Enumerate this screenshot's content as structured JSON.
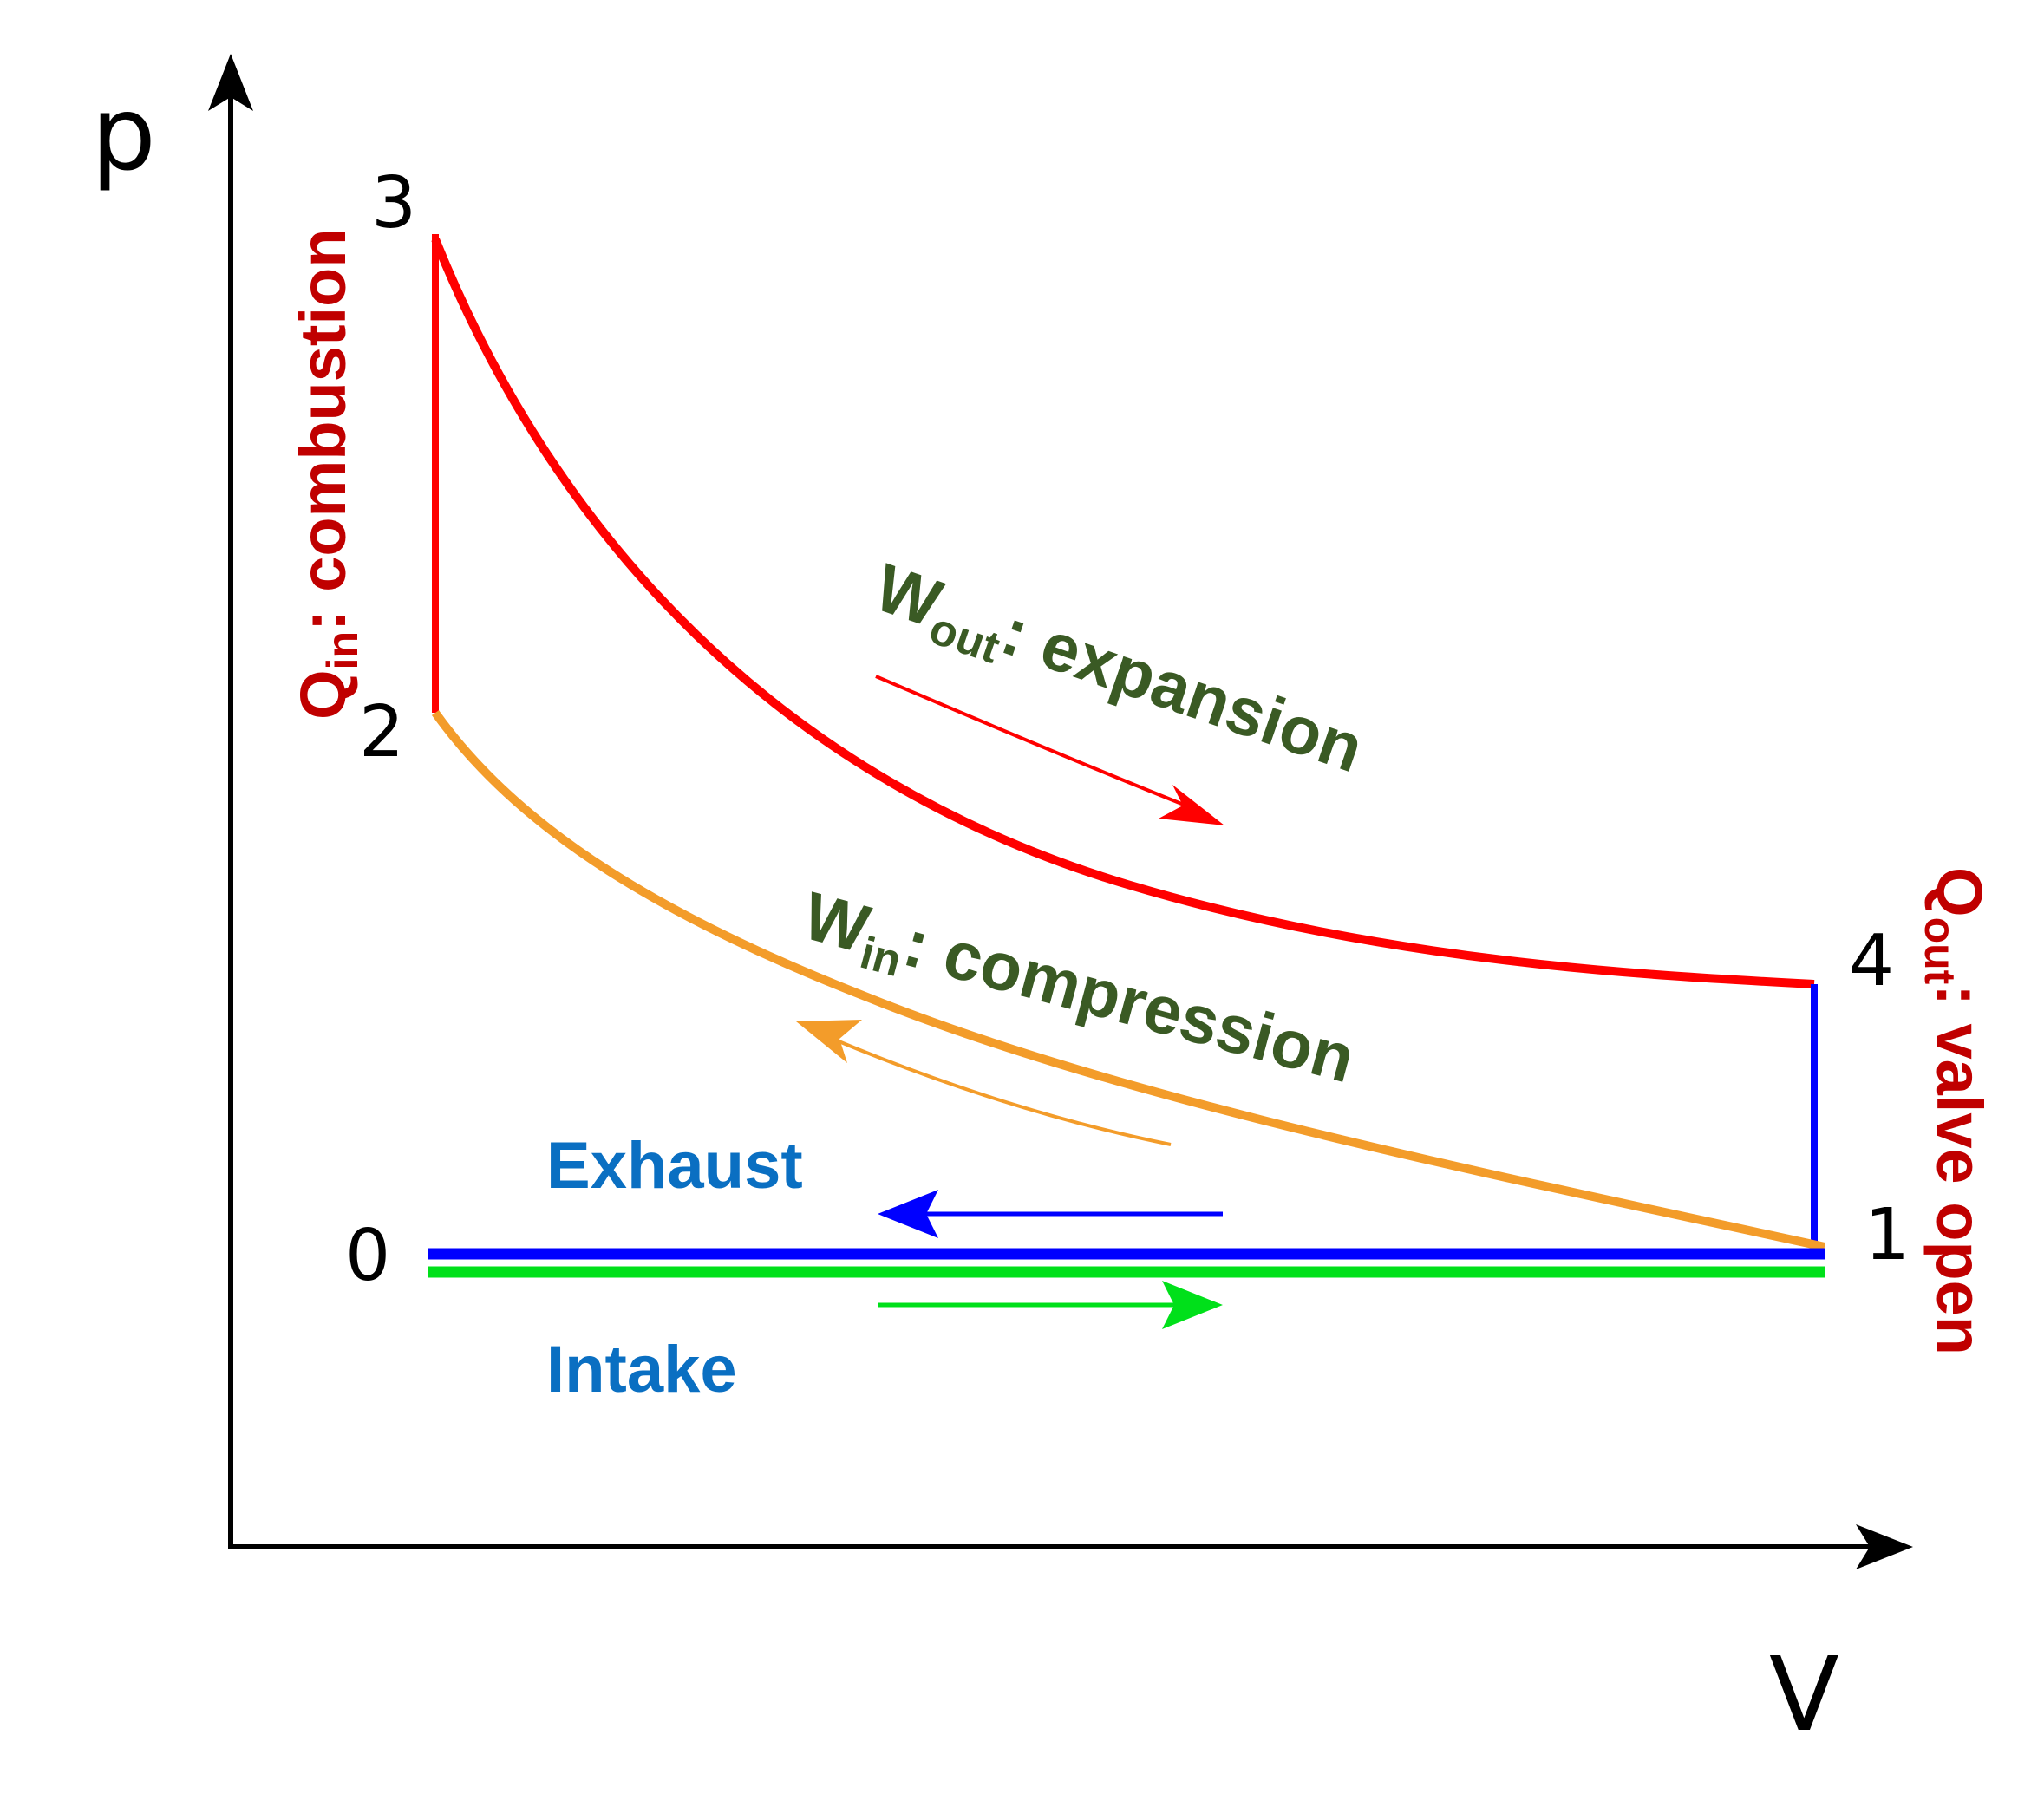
{
  "axes": {
    "y_label": "p",
    "x_label": "V",
    "axis_color": "#000000"
  },
  "points": {
    "p0": "0",
    "p1": "1",
    "p2": "2",
    "p3": "3",
    "p4": "4"
  },
  "labels": {
    "q_in": {
      "main": "Q",
      "sub": "in",
      "rest": ": combustion"
    },
    "q_out": {
      "main": "Q",
      "sub": "out",
      "rest": ": valve open"
    },
    "w_out": {
      "main": "W",
      "sub": "out",
      "rest": ": expansion"
    },
    "w_in": {
      "main": "W",
      "sub": "in",
      "rest": ": compression"
    },
    "exhaust": "Exhaust",
    "intake": "Intake"
  },
  "colors": {
    "expansion_combustion": "#ff0000",
    "compression": "#f39c2a",
    "exhaust_valve": "#0000ff",
    "intake": "#00e01a",
    "heat_labels": "#c00000",
    "work_labels": "#3a5a24",
    "stroke_labels": "#0a6fc2"
  }
}
